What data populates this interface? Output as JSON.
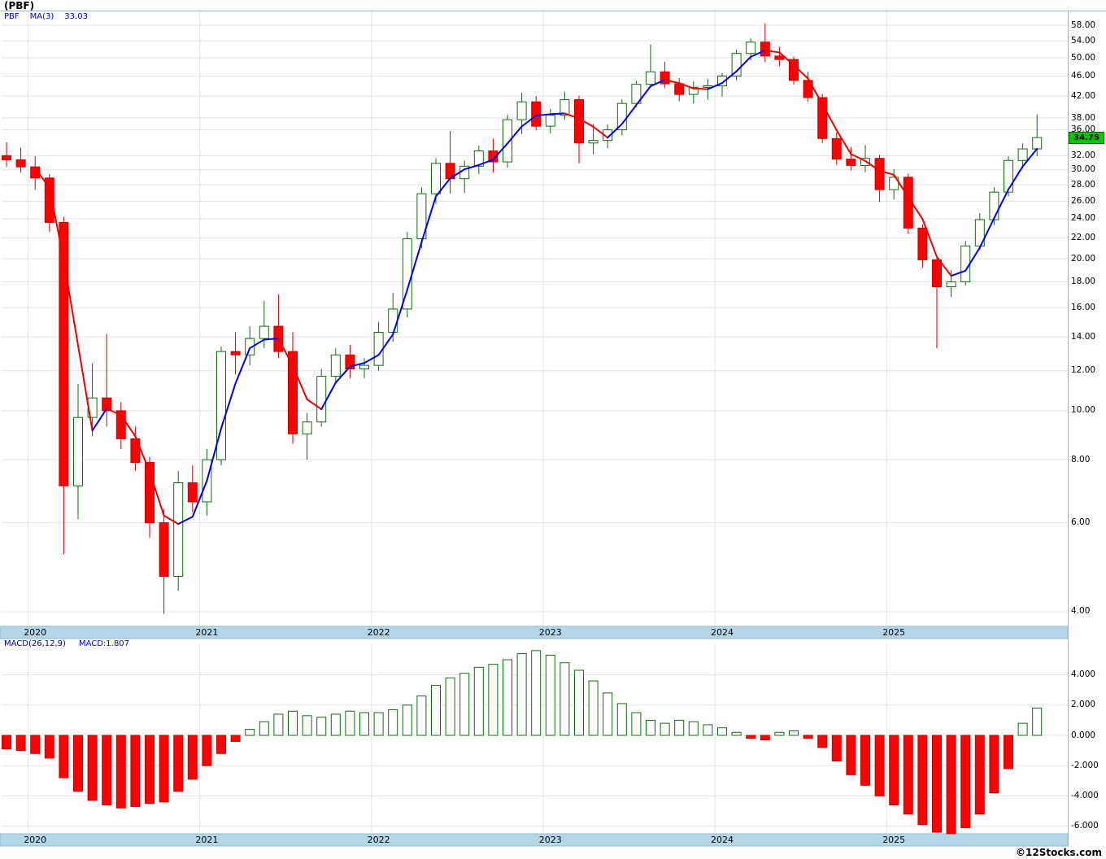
{
  "header": {
    "title": "(PBF)",
    "symbol": "PBF",
    "ma_label": "MA(3)",
    "ma_value": "33.03"
  },
  "macd_header": {
    "label": "MACD(26,12,9)",
    "value": "MACD:1.807"
  },
  "current_price_label": "34.75",
  "watermark": "©12Stocks.com",
  "colors": {
    "up_outline": "#0e6e0e",
    "down_fill": "#ff0000",
    "down_stroke": "#cc0000",
    "ma_rising": "#0000ee",
    "ma_falling": "#ee0000",
    "grid": "#e3e3e3",
    "band_bg": "#b4d7e8",
    "band_border": "#8fb8cf",
    "badge_bg": "#00c800",
    "badge_border": "#006600"
  },
  "price_axis": {
    "ticks": [
      58,
      54,
      50,
      46,
      42,
      38,
      36,
      32,
      30,
      28,
      26,
      24,
      22,
      20,
      18,
      16,
      14,
      12,
      10,
      8,
      6,
      4
    ]
  },
  "macd_axis": {
    "ticks": [
      4,
      2,
      0,
      -2,
      -4,
      -6
    ]
  },
  "x_axis": {
    "years": [
      {
        "label": "2020",
        "index": 2
      },
      {
        "label": "2021",
        "index": 14
      },
      {
        "label": "2022",
        "index": 26
      },
      {
        "label": "2023",
        "index": 38
      },
      {
        "label": "2024",
        "index": 50
      },
      {
        "label": "2025",
        "index": 62
      }
    ]
  },
  "chart_data": {
    "type": "candlestick",
    "title": "(PBF)",
    "y_scale": "log",
    "ylim": [
      3.8,
      60
    ],
    "legend_position": "top-left",
    "overlay": {
      "name": "MA(3)",
      "current": 33.03
    },
    "categories": [
      "2019-11",
      "2019-12",
      "2020-01",
      "2020-02",
      "2020-03",
      "2020-04",
      "2020-05",
      "2020-06",
      "2020-07",
      "2020-08",
      "2020-09",
      "2020-10",
      "2020-11",
      "2020-12",
      "2021-01",
      "2021-02",
      "2021-03",
      "2021-04",
      "2021-05",
      "2021-06",
      "2021-07",
      "2021-08",
      "2021-09",
      "2021-10",
      "2021-11",
      "2021-12",
      "2022-01",
      "2022-02",
      "2022-03",
      "2022-04",
      "2022-05",
      "2022-06",
      "2022-07",
      "2022-08",
      "2022-09",
      "2022-10",
      "2022-11",
      "2022-12",
      "2023-01",
      "2023-02",
      "2023-03",
      "2023-04",
      "2023-05",
      "2023-06",
      "2023-07",
      "2023-08",
      "2023-09",
      "2023-10",
      "2023-11",
      "2023-12",
      "2024-01",
      "2024-02",
      "2024-03",
      "2024-04",
      "2024-05",
      "2024-06",
      "2024-07",
      "2024-08",
      "2024-09",
      "2024-10",
      "2024-11",
      "2024-12",
      "2025-01",
      "2025-02",
      "2025-03",
      "2025-04",
      "2025-05",
      "2025-06",
      "2025-07",
      "2025-08",
      "2025-09",
      "2025-10",
      "2025-11"
    ],
    "ohlc": [
      [
        32.0,
        34.0,
        30.4,
        31.4
      ],
      [
        31.4,
        33.2,
        29.6,
        30.4
      ],
      [
        30.4,
        31.9,
        27.4,
        28.9
      ],
      [
        28.9,
        29.4,
        22.6,
        23.6
      ],
      [
        23.6,
        24.2,
        5.2,
        7.1
      ],
      [
        7.1,
        11.3,
        6.1,
        9.7
      ],
      [
        9.7,
        12.4,
        8.9,
        10.6
      ],
      [
        10.6,
        14.2,
        9.3,
        10.0
      ],
      [
        10.0,
        10.4,
        8.4,
        8.8
      ],
      [
        8.8,
        9.3,
        7.6,
        7.9
      ],
      [
        7.9,
        8.1,
        5.6,
        6.0
      ],
      [
        6.0,
        6.4,
        3.96,
        4.7
      ],
      [
        4.7,
        7.6,
        4.4,
        7.2
      ],
      [
        7.2,
        7.8,
        6.3,
        6.6
      ],
      [
        6.6,
        8.4,
        6.2,
        8.0
      ],
      [
        8.0,
        13.4,
        7.8,
        13.1
      ],
      [
        13.1,
        14.3,
        11.8,
        12.9
      ],
      [
        12.9,
        14.7,
        12.3,
        13.9
      ],
      [
        13.9,
        16.5,
        13.3,
        14.7
      ],
      [
        14.7,
        17.0,
        12.7,
        13.1
      ],
      [
        13.1,
        14.3,
        8.6,
        9.0
      ],
      [
        9.0,
        9.9,
        8.0,
        9.5
      ],
      [
        9.5,
        12.1,
        9.3,
        11.7
      ],
      [
        11.7,
        13.3,
        11.4,
        12.9
      ],
      [
        12.9,
        13.5,
        11.6,
        12.1
      ],
      [
        12.1,
        12.7,
        11.6,
        12.3
      ],
      [
        12.3,
        15.0,
        12.0,
        14.3
      ],
      [
        14.3,
        17.1,
        13.7,
        15.9
      ],
      [
        15.9,
        22.6,
        15.3,
        21.9
      ],
      [
        21.9,
        27.7,
        21.0,
        26.9
      ],
      [
        26.9,
        31.6,
        25.7,
        30.9
      ],
      [
        30.9,
        35.8,
        26.9,
        28.8
      ],
      [
        28.8,
        31.3,
        27.0,
        30.5
      ],
      [
        30.5,
        33.5,
        29.4,
        32.7
      ],
      [
        32.7,
        34.6,
        29.6,
        31.1
      ],
      [
        31.1,
        38.6,
        30.3,
        37.7
      ],
      [
        37.7,
        42.7,
        35.3,
        40.9
      ],
      [
        40.9,
        42.0,
        35.9,
        36.6
      ],
      [
        36.6,
        39.6,
        35.4,
        38.5
      ],
      [
        38.5,
        42.8,
        37.7,
        41.3
      ],
      [
        41.3,
        42.1,
        30.9,
        33.9
      ],
      [
        33.9,
        37.0,
        32.2,
        34.3
      ],
      [
        34.3,
        36.9,
        33.1,
        36.0
      ],
      [
        36.0,
        41.4,
        35.1,
        40.6
      ],
      [
        40.6,
        45.0,
        39.9,
        44.3
      ],
      [
        44.3,
        53.1,
        43.6,
        46.9
      ],
      [
        46.9,
        49.1,
        43.5,
        44.4
      ],
      [
        44.4,
        45.6,
        41.0,
        42.3
      ],
      [
        42.3,
        44.9,
        40.6,
        43.7
      ],
      [
        43.7,
        45.4,
        41.3,
        44.0
      ],
      [
        44.0,
        46.6,
        41.9,
        46.0
      ],
      [
        46.0,
        51.9,
        45.1,
        51.0
      ],
      [
        51.0,
        54.6,
        49.4,
        53.7
      ],
      [
        53.7,
        58.5,
        49.0,
        50.4
      ],
      [
        50.4,
        52.6,
        48.1,
        49.6
      ],
      [
        49.6,
        50.3,
        44.3,
        45.1
      ],
      [
        45.1,
        46.9,
        40.9,
        41.7
      ],
      [
        41.7,
        42.4,
        33.9,
        34.6
      ],
      [
        34.6,
        35.6,
        30.7,
        31.5
      ],
      [
        31.5,
        33.3,
        29.9,
        30.6
      ],
      [
        30.6,
        33.6,
        29.7,
        31.6
      ],
      [
        31.6,
        32.1,
        25.9,
        27.4
      ],
      [
        27.4,
        30.1,
        26.2,
        29.0
      ],
      [
        29.0,
        29.5,
        22.4,
        23.0
      ],
      [
        23.0,
        23.4,
        19.2,
        19.9
      ],
      [
        19.9,
        20.3,
        13.3,
        17.6
      ],
      [
        17.6,
        19.0,
        16.8,
        18.0
      ],
      [
        18.0,
        21.7,
        17.7,
        21.2
      ],
      [
        21.2,
        24.6,
        20.8,
        23.9
      ],
      [
        23.9,
        27.7,
        23.3,
        27.1
      ],
      [
        27.1,
        31.9,
        26.6,
        31.3
      ],
      [
        31.3,
        33.8,
        30.2,
        33.0
      ],
      [
        33.0,
        38.6,
        31.9,
        34.75
      ]
    ],
    "macd_series": {
      "name": "MACD(26,12,9)",
      "current": 1.807,
      "values": [
        -0.9,
        -1.0,
        -1.2,
        -1.5,
        -2.8,
        -3.7,
        -4.3,
        -4.6,
        -4.8,
        -4.7,
        -4.5,
        -4.4,
        -3.7,
        -2.9,
        -2.0,
        -1.2,
        -0.4,
        0.4,
        0.9,
        1.4,
        1.6,
        1.3,
        1.2,
        1.4,
        1.6,
        1.5,
        1.5,
        1.7,
        2.0,
        2.6,
        3.3,
        3.8,
        4.1,
        4.5,
        4.7,
        5.0,
        5.4,
        5.6,
        5.3,
        4.8,
        4.3,
        3.6,
        2.8,
        2.1,
        1.5,
        1.0,
        0.8,
        1.0,
        0.9,
        0.7,
        0.5,
        0.2,
        -0.2,
        -0.3,
        0.2,
        0.3,
        -0.2,
        -0.8,
        -1.7,
        -2.6,
        -3.3,
        -4.0,
        -4.6,
        -5.2,
        -5.9,
        -6.4,
        -6.5,
        -6.1,
        -5.2,
        -3.8,
        -2.2,
        0.8,
        1.807
      ]
    }
  }
}
